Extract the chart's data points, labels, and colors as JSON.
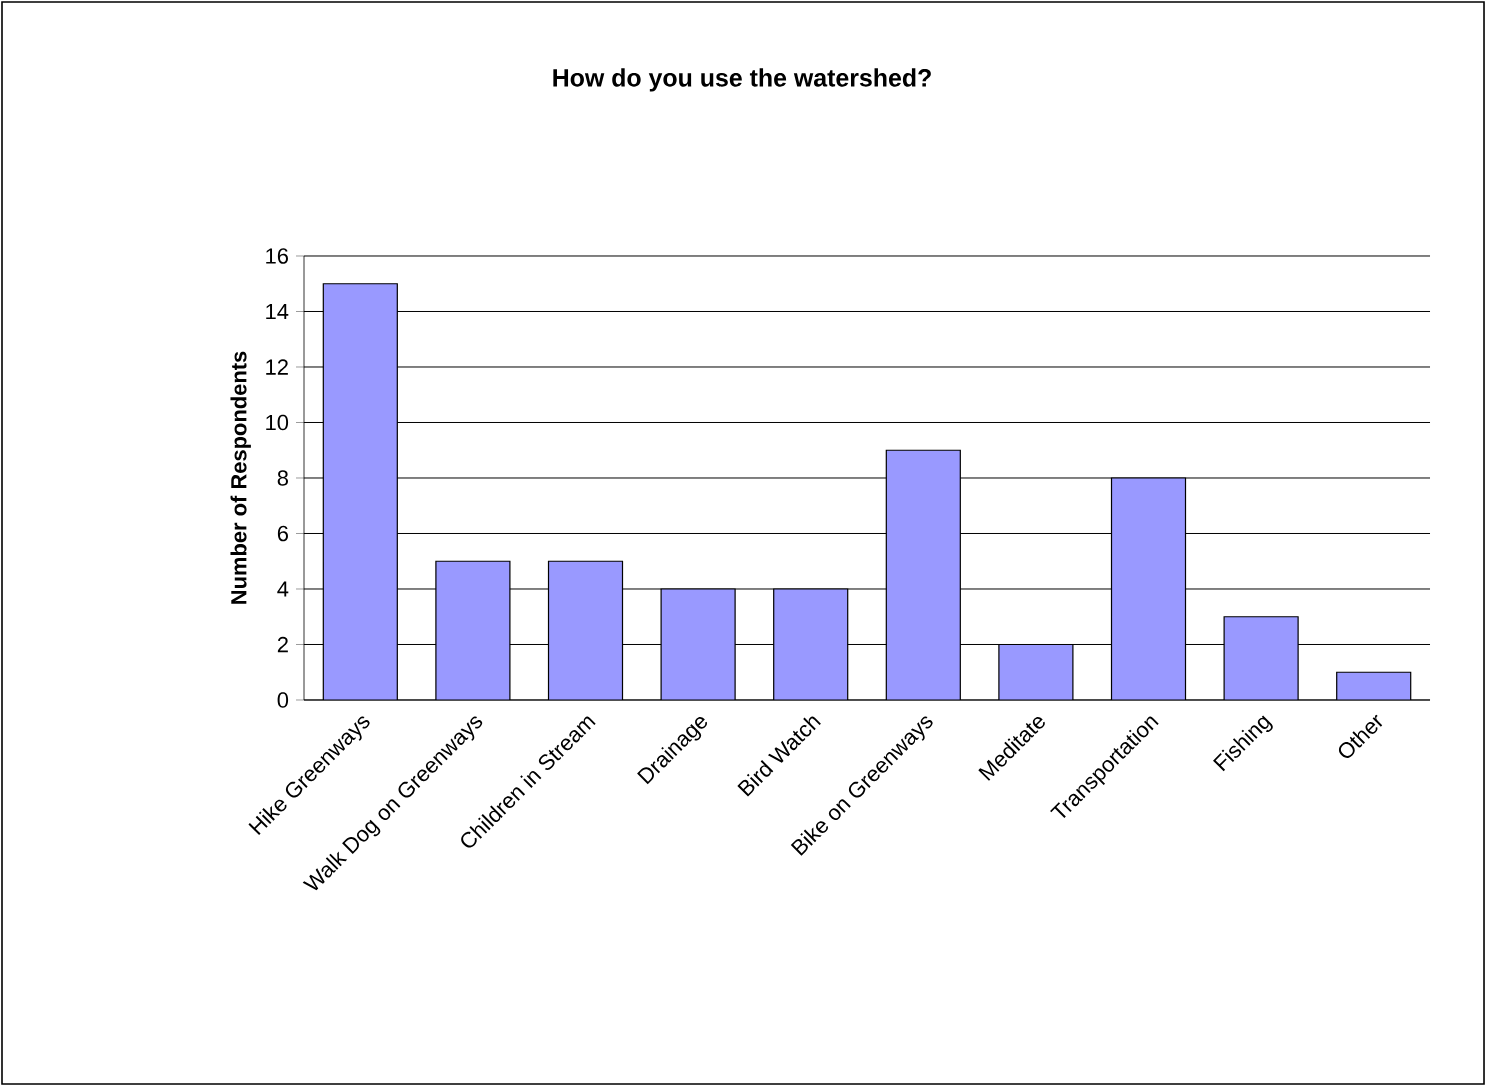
{
  "chart_data": {
    "type": "bar",
    "title": "How do you use the watershed?",
    "ylabel": "Number of Respondents",
    "categories": [
      "Hike Greenways",
      "Walk Dog on Greenways",
      "Children in Stream",
      "Drainage",
      "Bird Watch",
      "Bike on Greenways",
      "Meditate",
      "Transportation",
      "Fishing",
      "Other"
    ],
    "values": [
      15,
      5,
      5,
      4,
      4,
      9,
      2,
      8,
      3,
      1
    ],
    "color": "#9999ff",
    "ylim": [
      0,
      16
    ],
    "yticks": [
      0,
      2,
      4,
      6,
      8,
      10,
      12,
      14,
      16
    ],
    "grid": "y"
  }
}
